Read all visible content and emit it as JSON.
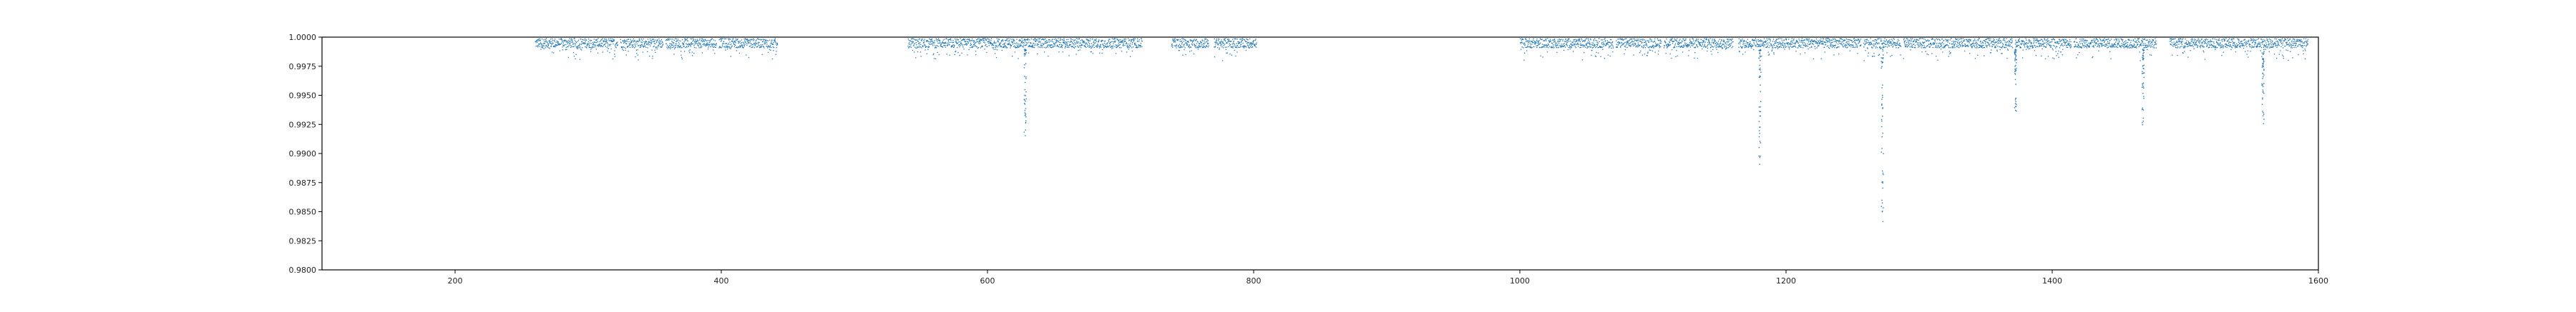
{
  "chart_data": {
    "type": "scatter",
    "title": "",
    "xlabel": "",
    "ylabel": "",
    "xlim": [
      100,
      1600
    ],
    "ylim": [
      0.98,
      1.0
    ],
    "x_ticks": [
      200,
      400,
      600,
      800,
      1000,
      1200,
      1400,
      1600
    ],
    "y_ticks": [
      0.98,
      0.9825,
      0.985,
      0.9875,
      0.99,
      0.9925,
      0.995,
      0.9975,
      1.0
    ],
    "x_tick_labels": [
      "200",
      "400",
      "600",
      "800",
      "1000",
      "1200",
      "1400",
      "1600"
    ],
    "y_tick_labels": [
      "0.9800",
      "0.9825",
      "0.9850",
      "0.9875",
      "0.9900",
      "0.9925",
      "0.9950",
      "0.9975",
      "1.0000"
    ],
    "grid": false,
    "marker_color": "#1f77b4",
    "series": [
      {
        "segments": [
          [
            260,
            322
          ],
          [
            324,
            356
          ],
          [
            358,
            396
          ],
          [
            398,
            442
          ],
          [
            540,
            716
          ],
          [
            738,
            766
          ],
          [
            770,
            802
          ],
          [
            1000,
            1070
          ],
          [
            1072,
            1106
          ],
          [
            1108,
            1160
          ],
          [
            1164,
            1256
          ],
          [
            1258,
            1286
          ],
          [
            1288,
            1370
          ],
          [
            1372,
            1414
          ],
          [
            1416,
            1478
          ],
          [
            1488,
            1592
          ]
        ],
        "baseline": 0.9994,
        "scatter_depth": 0.0009,
        "dips": [
          {
            "x": 628,
            "depth": 0.0075
          },
          {
            "x": 1180,
            "depth": 0.011
          },
          {
            "x": 1272,
            "depth": 0.015
          },
          {
            "x": 1372,
            "depth": 0.0055
          },
          {
            "x": 1468,
            "depth": 0.0065
          },
          {
            "x": 1558,
            "depth": 0.0065
          }
        ]
      }
    ]
  }
}
